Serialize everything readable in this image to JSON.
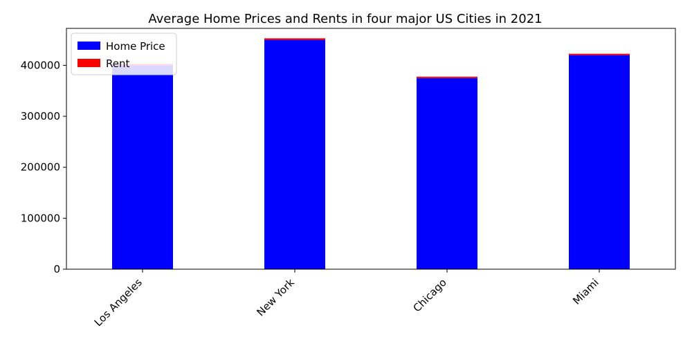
{
  "chart_data": {
    "type": "bar",
    "title": "Average Home Prices and Rents in four major US Cities in 2021",
    "xlabel": "",
    "ylabel": "",
    "categories": [
      "Los Angeles",
      "New York",
      "Chicago",
      "Miami"
    ],
    "series": [
      {
        "name": "Home Price",
        "values": [
          400000,
          450000,
          375000,
          420000
        ],
        "color": "#0000ff"
      },
      {
        "name": "Rent",
        "values": [
          2500,
          3000,
          1800,
          2700
        ],
        "color": "#ff0000"
      }
    ],
    "stacked": true,
    "ylim": [
      0,
      472500
    ],
    "yticks": [
      0,
      100000,
      200000,
      300000,
      400000
    ],
    "grid": false,
    "legend_position": "top-left"
  }
}
